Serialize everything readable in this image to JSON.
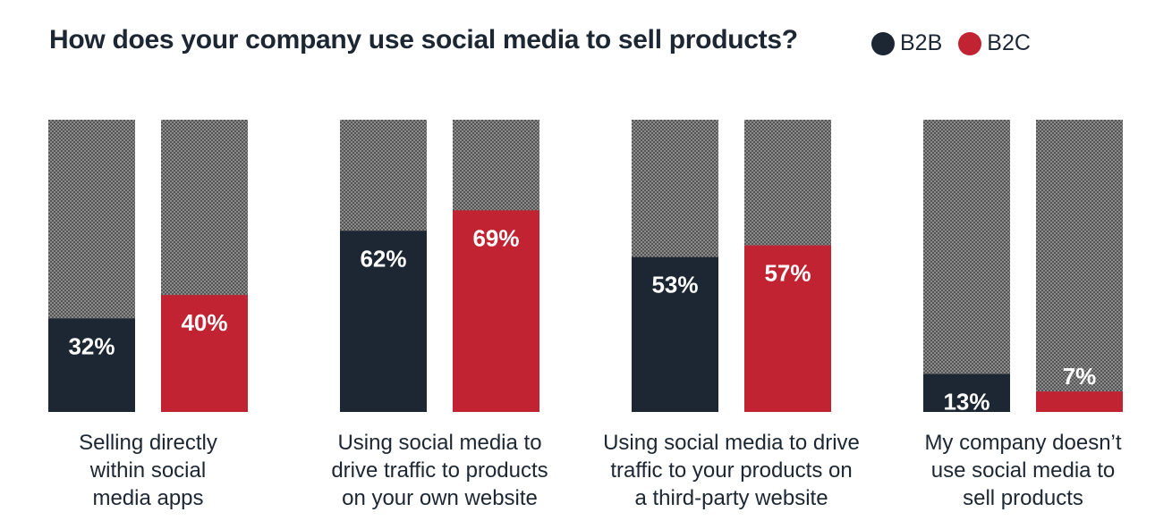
{
  "chart_data": {
    "type": "bar",
    "title": "How does your company use social media to sell products?",
    "categories": [
      "Selling directly within social media apps",
      "Using social media to drive traffic to products on your own website",
      "Using social media to drive traffic to your products on a third-party website",
      "My company doesn’t use social media to sell products"
    ],
    "category_lines": [
      [
        "Selling directly",
        "within social",
        "media apps"
      ],
      [
        "Using social media to",
        "drive traffic to products",
        "on your own website"
      ],
      [
        "Using social media to drive",
        "traffic to your products on",
        "a third-party website"
      ],
      [
        "My company doesn’t",
        "use social media to",
        "sell products"
      ]
    ],
    "series": [
      {
        "name": "B2B",
        "color": "#1c2733",
        "values": [
          32,
          62,
          53,
          13
        ],
        "labels": [
          "32%",
          "62%",
          "53%",
          "13%"
        ]
      },
      {
        "name": "B2C",
        "color": "#c12332",
        "values": [
          40,
          69,
          57,
          7
        ],
        "labels": [
          "40%",
          "69%",
          "57%",
          "7%"
        ]
      }
    ],
    "ylim": [
      0,
      100
    ],
    "value_suffix": "%",
    "legend_position": "top-right",
    "grid": false,
    "background_pattern": "gray-checkered"
  }
}
